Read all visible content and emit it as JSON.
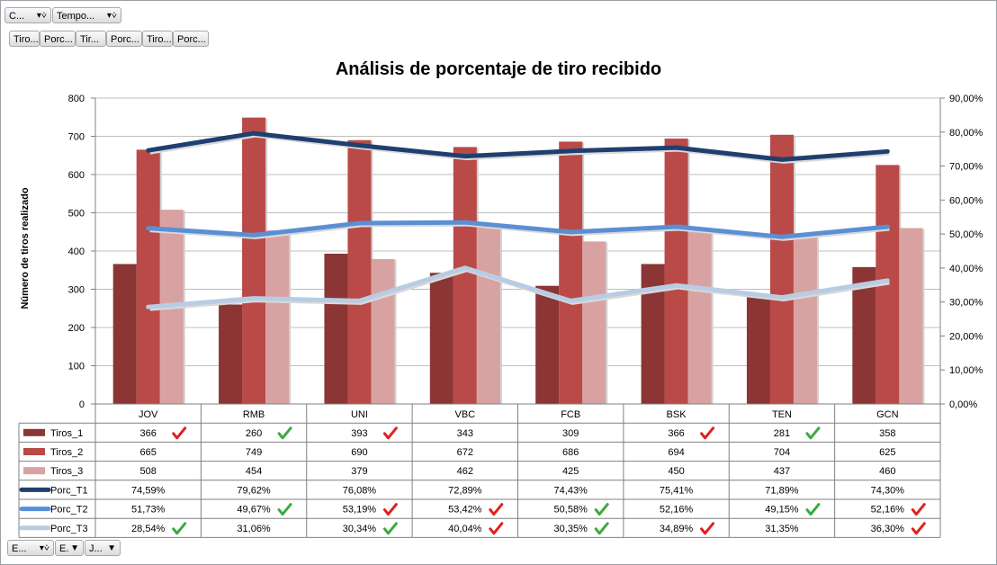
{
  "filters": {
    "top": [
      {
        "label": "C...",
        "icon": "filter-icon"
      },
      {
        "label": "Tempo...",
        "icon": "filter-icon"
      }
    ],
    "fields": [
      "Tiro...",
      "Porc...",
      "Tir...",
      "Porc...",
      "Tiro...",
      "Porc..."
    ],
    "bottom": [
      {
        "label": "E...",
        "icon": "filter-icon"
      },
      {
        "label": "E.",
        "icon": "dropdown-icon"
      },
      {
        "label": "J...",
        "icon": "dropdown-icon"
      }
    ]
  },
  "chart_data": {
    "type": "bar",
    "title": "Análisis de porcentaje de tiro recibido",
    "ylabel": "Número de tiros realizado",
    "ylim": [
      0,
      800
    ],
    "yticks": [
      "0",
      "100",
      "200",
      "300",
      "400",
      "500",
      "600",
      "700",
      "800"
    ],
    "y2lim": [
      0,
      90
    ],
    "y2ticks": [
      "0,00%",
      "10,00%",
      "20,00%",
      "30,00%",
      "40,00%",
      "50,00%",
      "60,00%",
      "70,00%",
      "80,00%",
      "90,00%"
    ],
    "categories": [
      "JOV",
      "RMB",
      "UNI",
      "VBC",
      "FCB",
      "BSK",
      "TEN",
      "GCN"
    ],
    "series": [
      {
        "name": "Tiros_1",
        "kind": "bar",
        "color": "#8b3535",
        "values": [
          366,
          260,
          393,
          343,
          309,
          366,
          281,
          358
        ],
        "labels": [
          "366",
          "260",
          "393",
          "343",
          "309",
          "366",
          "281",
          "358"
        ],
        "marks": [
          "red",
          "green",
          "red",
          "",
          "",
          "red",
          "green",
          ""
        ]
      },
      {
        "name": "Tiros_2",
        "kind": "bar",
        "color": "#b94a48",
        "values": [
          665,
          749,
          690,
          672,
          686,
          694,
          704,
          625
        ],
        "labels": [
          "665",
          "749",
          "690",
          "672",
          "686",
          "694",
          "704",
          "625"
        ],
        "marks": [
          "",
          "",
          "",
          "",
          "",
          "",
          "",
          ""
        ]
      },
      {
        "name": "Tiros_3",
        "kind": "bar",
        "color": "#d9a2a2",
        "values": [
          508,
          454,
          379,
          462,
          425,
          450,
          437,
          460
        ],
        "labels": [
          "508",
          "454",
          "379",
          "462",
          "425",
          "450",
          "437",
          "460"
        ],
        "marks": [
          "",
          "",
          "",
          "",
          "",
          "",
          "",
          ""
        ]
      },
      {
        "name": "Porc_T1",
        "kind": "line",
        "color": "#1f3f6e",
        "values": [
          74.59,
          79.62,
          76.08,
          72.89,
          74.43,
          75.41,
          71.89,
          74.3
        ],
        "labels": [
          "74,59%",
          "79,62%",
          "76,08%",
          "72,89%",
          "74,43%",
          "75,41%",
          "71,89%",
          "74,30%"
        ],
        "marks": [
          "",
          "",
          "",
          "",
          "",
          "",
          "",
          ""
        ]
      },
      {
        "name": "Porc_T2",
        "kind": "line",
        "color": "#5b8fd4",
        "values": [
          51.73,
          49.67,
          53.19,
          53.42,
          50.58,
          52.16,
          49.15,
          52.16
        ],
        "labels": [
          "51,73%",
          "49,67%",
          "53,19%",
          "53,42%",
          "50,58%",
          "52,16%",
          "49,15%",
          "52,16%"
        ],
        "marks": [
          "",
          "green",
          "red",
          "red",
          "green",
          "",
          "green",
          "red"
        ]
      },
      {
        "name": "Porc_T3",
        "kind": "line",
        "color": "#b8cce4",
        "values": [
          28.54,
          31.06,
          30.34,
          40.04,
          30.35,
          34.89,
          31.35,
          36.3
        ],
        "labels": [
          "28,54%",
          "31,06%",
          "30,34%",
          "40,04%",
          "30,35%",
          "34,89%",
          "31,35%",
          "36,30%"
        ],
        "marks": [
          "green",
          "",
          "green",
          "red",
          "green",
          "red",
          "",
          "red"
        ]
      }
    ],
    "mark_colors": {
      "green": "#3bab3b",
      "red": "#e02020"
    },
    "grid": true
  }
}
